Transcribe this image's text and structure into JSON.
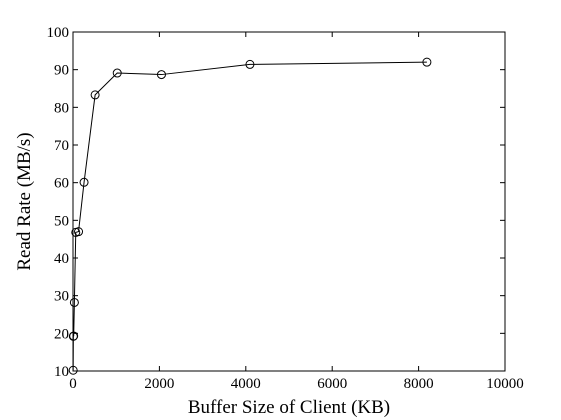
{
  "chart_data": {
    "type": "line",
    "title": "",
    "xlabel": "Buffer Size of Client (KB)",
    "ylabel": "Read Rate (MB/s)",
    "xlim": [
      0,
      10000
    ],
    "ylim": [
      10,
      100
    ],
    "xticks": [
      0,
      2000,
      4000,
      6000,
      8000,
      10000
    ],
    "yticks": [
      10,
      20,
      30,
      40,
      50,
      60,
      70,
      80,
      90,
      100
    ],
    "grid": false,
    "legend": "none",
    "series": [
      {
        "marker": "open-circle",
        "color": "#000000",
        "x": [
          4,
          8,
          16,
          32,
          64,
          128,
          256,
          512,
          1024,
          2048,
          4096,
          8192
        ],
        "y": [
          10.2,
          19.2,
          19.3,
          28.2,
          46.8,
          47.0,
          60.1,
          83.3,
          89.1,
          88.7,
          91.4,
          92.0
        ]
      }
    ]
  }
}
